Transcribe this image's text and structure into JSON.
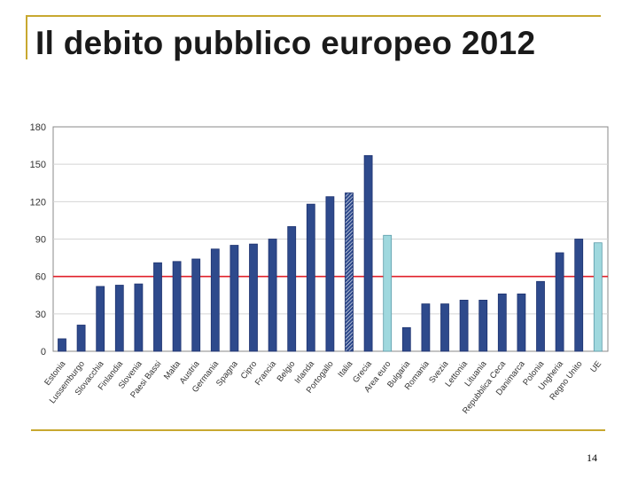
{
  "slide": {
    "title": "Il debito pubblico europeo 2012",
    "page_number": "14"
  },
  "colors": {
    "accent_rule": "#c8a830",
    "bar_fill": "#2e4a8c",
    "bar_stroke": "#1e3370",
    "highlight_fill": "#9fd8de",
    "highlight_stroke": "#5a9aa8",
    "reference_line": "#e0202a"
  },
  "chart_data": {
    "type": "bar",
    "title": "",
    "xlabel": "",
    "ylabel": "",
    "ylim": [
      0,
      180
    ],
    "yticks": [
      0,
      30,
      60,
      90,
      120,
      150,
      180
    ],
    "grid": true,
    "reference_line": 60,
    "categories": [
      "Estonia",
      "Lussemburgo",
      "Slovacchia",
      "Finlandia",
      "Slovenia",
      "Paesi Bassi",
      "Malta",
      "Austria",
      "Germania",
      "Spagna",
      "Cipro",
      "Francia",
      "Belgio",
      "Irlanda",
      "Portogallo",
      "Italia",
      "Grecia",
      "Area euro",
      "Bulgaria",
      "Romania",
      "Svezia",
      "Lettonia",
      "Lituania",
      "Repubblica Ceca",
      "Danimarca",
      "Polonia",
      "Ungheria",
      "Regno Unito",
      "UE"
    ],
    "values": [
      10,
      21,
      52,
      53,
      54,
      71,
      72,
      74,
      82,
      85,
      86,
      90,
      100,
      118,
      124,
      127,
      157,
      93,
      19,
      38,
      38,
      41,
      41,
      46,
      46,
      56,
      79,
      90,
      87
    ],
    "styles": [
      "solid",
      "solid",
      "solid",
      "solid",
      "solid",
      "solid",
      "solid",
      "solid",
      "solid",
      "solid",
      "solid",
      "solid",
      "solid",
      "solid",
      "solid",
      "hatched",
      "solid",
      "highlight",
      "solid",
      "solid",
      "solid",
      "solid",
      "solid",
      "solid",
      "solid",
      "solid",
      "solid",
      "solid",
      "highlight"
    ]
  }
}
